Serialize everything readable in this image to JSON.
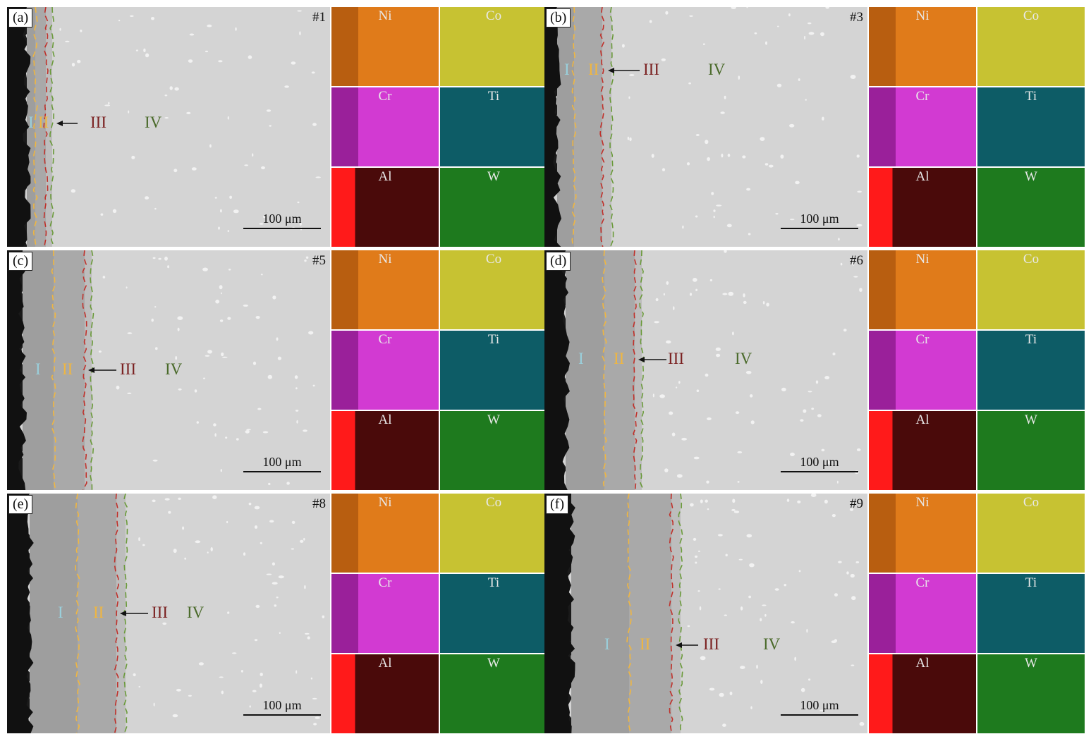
{
  "colors": {
    "zone_I": "#9ad0dc",
    "zone_II": "#f0b640",
    "zone_III": "#7a2020",
    "zone_IV": "#4a6a2a",
    "Ni": "#e07b1a",
    "Co": "#c7c232",
    "Cr": "#9a209a",
    "Cr_bright": "#d23ad2",
    "Ti": "#0d5c66",
    "Al_dark": "#4a0a0a",
    "Al_bright": "#ff1a1a",
    "W": "#1e7a1e"
  },
  "panels": [
    {
      "label": "(a)",
      "sample": "#1",
      "zones": [
        "I",
        "II",
        "III",
        "IV"
      ],
      "scale": "100 μm",
      "maps": [
        "Ni",
        "Co",
        "Cr",
        "Ti",
        "Al",
        "W"
      ]
    },
    {
      "label": "(b)",
      "sample": "#3",
      "zones": [
        "I",
        "II",
        "III",
        "IV"
      ],
      "scale": "100 μm",
      "maps": [
        "Ni",
        "Co",
        "Cr",
        "Ti",
        "Al",
        "W"
      ]
    },
    {
      "label": "(c)",
      "sample": "#5",
      "zones": [
        "I",
        "II",
        "III",
        "IV"
      ],
      "scale": "100 μm",
      "maps": [
        "Ni",
        "Co",
        "Cr",
        "Ti",
        "Al",
        "W"
      ]
    },
    {
      "label": "(d)",
      "sample": "#6",
      "zones": [
        "I",
        "II",
        "III",
        "IV"
      ],
      "scale": "100 μm",
      "maps": [
        "Ni",
        "Co",
        "Cr",
        "Ti",
        "Al",
        "W"
      ]
    },
    {
      "label": "(e)",
      "sample": "#8",
      "zones": [
        "I",
        "II",
        "III",
        "IV"
      ],
      "scale": "100 μm",
      "maps": [
        "Ni",
        "Co",
        "Cr",
        "Ti",
        "Al",
        "W"
      ]
    },
    {
      "label": "(f)",
      "sample": "#9",
      "zones": [
        "I",
        "II",
        "III",
        "IV"
      ],
      "scale": "100 μm",
      "maps": [
        "Ni",
        "Co",
        "Cr",
        "Ti",
        "Al",
        "W"
      ]
    }
  ]
}
